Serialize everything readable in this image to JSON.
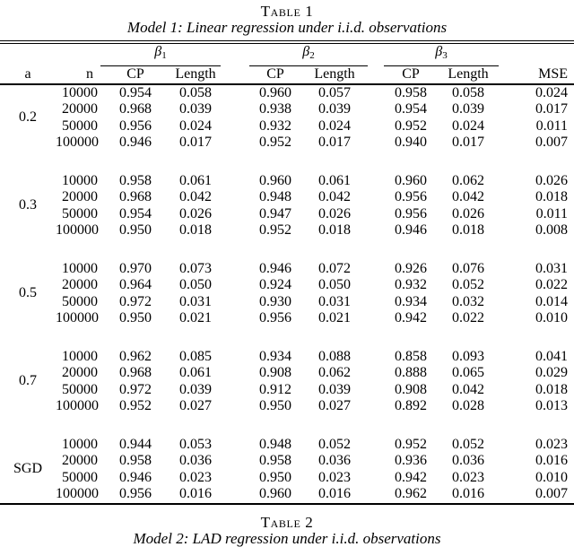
{
  "page": {
    "table1_caption": "Table 1",
    "table1_subtitle": "Model 1: Linear regression under i.i.d. observations",
    "table2_caption": "Table 2",
    "table2_subtitle": "Model 2: LAD regression under i.i.d. observations"
  },
  "header": {
    "col_a": "a",
    "col_n": "n",
    "cp": "CP",
    "length": "Length",
    "mse": "MSE",
    "groups": [
      {
        "symbol": "β",
        "sub": "1"
      },
      {
        "symbol": "β",
        "sub": "2"
      },
      {
        "symbol": "β",
        "sub": "3"
      }
    ]
  },
  "blocks": [
    {
      "a": "0.2",
      "rows": [
        {
          "n": "10000",
          "values": [
            "0.954",
            "0.058",
            "0.960",
            "0.057",
            "0.958",
            "0.058",
            "0.024"
          ]
        },
        {
          "n": "20000",
          "values": [
            "0.968",
            "0.039",
            "0.938",
            "0.039",
            "0.954",
            "0.039",
            "0.017"
          ]
        },
        {
          "n": "50000",
          "values": [
            "0.956",
            "0.024",
            "0.932",
            "0.024",
            "0.952",
            "0.024",
            "0.011"
          ]
        },
        {
          "n": "100000",
          "values": [
            "0.946",
            "0.017",
            "0.952",
            "0.017",
            "0.940",
            "0.017",
            "0.007"
          ]
        }
      ]
    },
    {
      "a": "0.3",
      "rows": [
        {
          "n": "10000",
          "values": [
            "0.958",
            "0.061",
            "0.960",
            "0.061",
            "0.960",
            "0.062",
            "0.026"
          ]
        },
        {
          "n": "20000",
          "values": [
            "0.968",
            "0.042",
            "0.948",
            "0.042",
            "0.956",
            "0.042",
            "0.018"
          ]
        },
        {
          "n": "50000",
          "values": [
            "0.954",
            "0.026",
            "0.947",
            "0.026",
            "0.956",
            "0.026",
            "0.011"
          ]
        },
        {
          "n": "100000",
          "values": [
            "0.950",
            "0.018",
            "0.952",
            "0.018",
            "0.946",
            "0.018",
            "0.008"
          ]
        }
      ]
    },
    {
      "a": "0.5",
      "rows": [
        {
          "n": "10000",
          "values": [
            "0.970",
            "0.073",
            "0.946",
            "0.072",
            "0.926",
            "0.076",
            "0.031"
          ]
        },
        {
          "n": "20000",
          "values": [
            "0.964",
            "0.050",
            "0.924",
            "0.050",
            "0.932",
            "0.052",
            "0.022"
          ]
        },
        {
          "n": "50000",
          "values": [
            "0.972",
            "0.031",
            "0.930",
            "0.031",
            "0.934",
            "0.032",
            "0.014"
          ]
        },
        {
          "n": "100000",
          "values": [
            "0.950",
            "0.021",
            "0.956",
            "0.021",
            "0.942",
            "0.022",
            "0.010"
          ]
        }
      ]
    },
    {
      "a": "0.7",
      "rows": [
        {
          "n": "10000",
          "values": [
            "0.962",
            "0.085",
            "0.934",
            "0.088",
            "0.858",
            "0.093",
            "0.041"
          ]
        },
        {
          "n": "20000",
          "values": [
            "0.968",
            "0.061",
            "0.908",
            "0.062",
            "0.888",
            "0.065",
            "0.029"
          ]
        },
        {
          "n": "50000",
          "values": [
            "0.972",
            "0.039",
            "0.912",
            "0.039",
            "0.908",
            "0.042",
            "0.018"
          ]
        },
        {
          "n": "100000",
          "values": [
            "0.952",
            "0.027",
            "0.950",
            "0.027",
            "0.892",
            "0.028",
            "0.013"
          ]
        }
      ]
    },
    {
      "a": "SGD",
      "rows": [
        {
          "n": "10000",
          "values": [
            "0.944",
            "0.053",
            "0.948",
            "0.052",
            "0.952",
            "0.052",
            "0.023"
          ]
        },
        {
          "n": "20000",
          "values": [
            "0.958",
            "0.036",
            "0.958",
            "0.036",
            "0.936",
            "0.036",
            "0.016"
          ]
        },
        {
          "n": "50000",
          "values": [
            "0.946",
            "0.023",
            "0.950",
            "0.023",
            "0.942",
            "0.023",
            "0.010"
          ]
        },
        {
          "n": "100000",
          "values": [
            "0.956",
            "0.016",
            "0.960",
            "0.016",
            "0.962",
            "0.016",
            "0.007"
          ]
        }
      ]
    }
  ]
}
